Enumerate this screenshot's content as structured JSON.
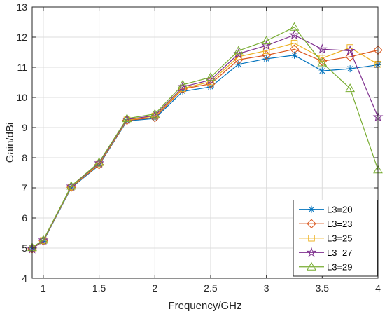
{
  "chart_data": {
    "type": "line",
    "xlabel": "Frequency/GHz",
    "ylabel": "Gain/dBi",
    "xlim": [
      0.9,
      4
    ],
    "ylim": [
      4,
      13
    ],
    "xticks": [
      1,
      1.5,
      2,
      2.5,
      3,
      3.5,
      4
    ],
    "xtick_labels": [
      "1",
      "1.5",
      "2",
      "2.5",
      "3",
      "3.5",
      "4"
    ],
    "yticks": [
      4,
      5,
      6,
      7,
      8,
      9,
      10,
      11,
      12,
      13
    ],
    "ytick_labels": [
      "4",
      "5",
      "6",
      "7",
      "8",
      "9",
      "10",
      "11",
      "12",
      "13"
    ],
    "grid": true,
    "legend_position": "bottom-right",
    "x": [
      0.9,
      1,
      1.25,
      1.5,
      1.75,
      2,
      2.25,
      2.5,
      2.75,
      3,
      3.25,
      3.5,
      3.75,
      4
    ],
    "series": [
      {
        "name": "L3=20",
        "color": "#0072BD",
        "marker": "asterisk",
        "values": [
          5.0,
          5.22,
          7.0,
          7.75,
          9.22,
          9.3,
          10.2,
          10.35,
          11.1,
          11.28,
          11.4,
          10.88,
          10.95,
          11.08
        ]
      },
      {
        "name": "L3=23",
        "color": "#D95319",
        "marker": "diamond",
        "values": [
          4.98,
          5.24,
          7.02,
          7.77,
          9.24,
          9.33,
          10.28,
          10.45,
          11.25,
          11.4,
          11.6,
          11.2,
          11.35,
          11.57
        ]
      },
      {
        "name": "L3=25",
        "color": "#EDB120",
        "marker": "square",
        "values": [
          5.0,
          5.25,
          7.03,
          7.8,
          9.25,
          9.38,
          10.3,
          10.52,
          11.35,
          11.55,
          11.8,
          11.3,
          11.65,
          11.1
        ]
      },
      {
        "name": "L3=27",
        "color": "#7E2F8E",
        "marker": "pentagram",
        "values": [
          4.97,
          5.26,
          7.05,
          7.82,
          9.27,
          9.4,
          10.35,
          10.58,
          11.45,
          11.72,
          12.07,
          11.6,
          11.55,
          9.35
        ]
      },
      {
        "name": "L3=29",
        "color": "#77AC30",
        "marker": "triangle",
        "values": [
          5.02,
          5.27,
          7.06,
          7.85,
          9.3,
          9.45,
          10.42,
          10.67,
          11.55,
          11.88,
          12.33,
          11.15,
          10.3,
          7.6
        ]
      }
    ]
  }
}
